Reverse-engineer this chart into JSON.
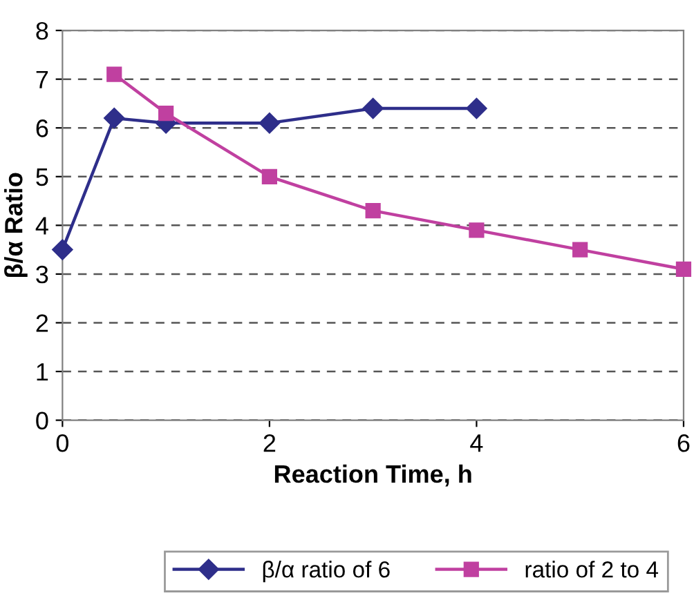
{
  "chart_data": {
    "type": "line",
    "xlabel": "Reaction Time, h",
    "ylabel": "β/α Ratio",
    "xlim": [
      0,
      6
    ],
    "xticks": [
      0,
      2,
      4,
      6
    ],
    "ylim": [
      0,
      8
    ],
    "yticks": [
      0,
      1,
      2,
      3,
      4,
      5,
      6,
      7,
      8
    ],
    "grid": "y",
    "legend": "bottom",
    "series": [
      {
        "name": "β/α ratio of 6",
        "color": "#2e2e8a",
        "marker": "diamond",
        "x": [
          0,
          0.5,
          1,
          2,
          3,
          4
        ],
        "values": [
          3.5,
          6.2,
          6.1,
          6.1,
          6.4,
          6.4
        ]
      },
      {
        "name": "ratio of 2 to 4",
        "color": "#c040a0",
        "marker": "square",
        "x": [
          0.5,
          1,
          2,
          3,
          4,
          5,
          6
        ],
        "values": [
          7.1,
          6.3,
          5.0,
          4.3,
          3.9,
          3.5,
          3.1
        ]
      }
    ]
  }
}
